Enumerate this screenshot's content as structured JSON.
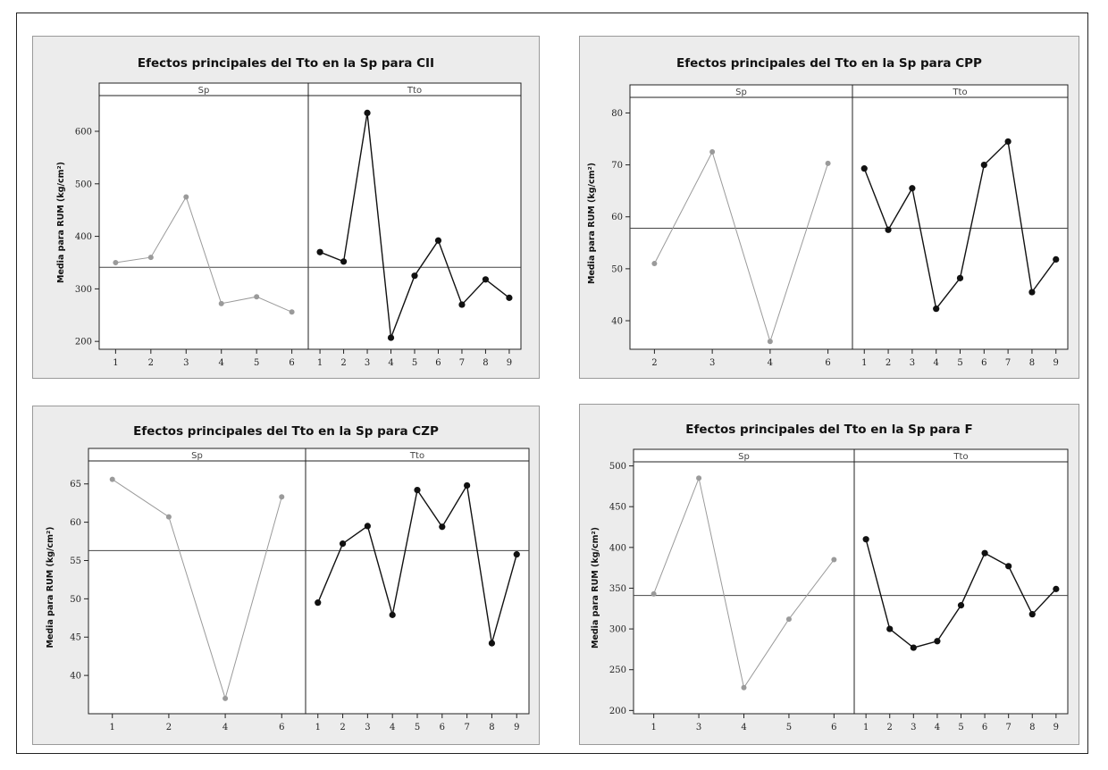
{
  "chart_data": [
    {
      "type": "line",
      "title": "Efectos principales del Tto en la Sp para CII",
      "ylabel": "Media para RUM (kg/cm²)",
      "ylim": [
        185,
        668
      ],
      "yticks": [
        200,
        300,
        400,
        500,
        600
      ],
      "mean_line": 341,
      "panels": [
        {
          "strip": "Sp",
          "x": [
            "1",
            "2",
            "3",
            "4",
            "5",
            "6"
          ],
          "values": [
            350,
            360,
            475,
            272,
            285,
            256
          ],
          "color": "#9a9a9a"
        },
        {
          "strip": "Tto",
          "x": [
            "1",
            "2",
            "3",
            "4",
            "5",
            "6",
            "7",
            "8",
            "9"
          ],
          "values": [
            370,
            352,
            635,
            207,
            325,
            392,
            270,
            318,
            283
          ],
          "color": "#111111"
        }
      ]
    },
    {
      "type": "line",
      "title": "Efectos principales del Tto en la Sp para CPP",
      "ylabel": "Media para RUM (kg/cm²)",
      "ylim": [
        34.5,
        83
      ],
      "yticks": [
        40,
        50,
        60,
        70,
        80
      ],
      "mean_line": 57.8,
      "panels": [
        {
          "strip": "Sp",
          "x": [
            "2",
            "3",
            "4",
            "6"
          ],
          "values": [
            51,
            72.5,
            36,
            70.3
          ],
          "color": "#9a9a9a"
        },
        {
          "strip": "Tto",
          "x": [
            "1",
            "2",
            "3",
            "4",
            "5",
            "6",
            "7",
            "8",
            "9"
          ],
          "values": [
            69.3,
            57.5,
            65.5,
            42.3,
            48.2,
            70,
            74.5,
            45.5,
            51.8
          ],
          "color": "#111111"
        }
      ]
    },
    {
      "type": "line",
      "title": "Efectos principales del Tto en la Sp para CZP",
      "ylabel": "Media para RUM (kg/cm²)",
      "ylim": [
        35,
        68
      ],
      "yticks": [
        40,
        45,
        50,
        55,
        60,
        65
      ],
      "mean_line": 56.3,
      "panels": [
        {
          "strip": "Sp",
          "x": [
            "1",
            "2",
            "4",
            "6"
          ],
          "values": [
            65.6,
            60.7,
            37,
            63.3
          ],
          "color": "#9a9a9a"
        },
        {
          "strip": "Tto",
          "x": [
            "1",
            "2",
            "3",
            "4",
            "5",
            "6",
            "7",
            "8",
            "9"
          ],
          "values": [
            49.5,
            57.2,
            59.5,
            47.9,
            64.2,
            59.4,
            64.8,
            44.2,
            55.8
          ],
          "color": "#111111"
        }
      ]
    },
    {
      "type": "line",
      "title": "Efectos principales del Tto en la Sp para F",
      "ylabel": "Media para RUM (kg/cm²)",
      "ylim": [
        196,
        505
      ],
      "yticks": [
        200,
        250,
        300,
        350,
        400,
        450,
        500
      ],
      "mean_line": 341,
      "panels": [
        {
          "strip": "Sp",
          "x": [
            "1",
            "3",
            "4",
            "5",
            "6"
          ],
          "values": [
            343,
            485,
            228,
            312,
            385
          ],
          "color": "#9a9a9a"
        },
        {
          "strip": "Tto",
          "x": [
            "1",
            "2",
            "3",
            "4",
            "5",
            "6",
            "7",
            "8",
            "9"
          ],
          "values": [
            410,
            300,
            277,
            285,
            329,
            393,
            377,
            318,
            349
          ],
          "color": "#111111"
        }
      ]
    }
  ]
}
